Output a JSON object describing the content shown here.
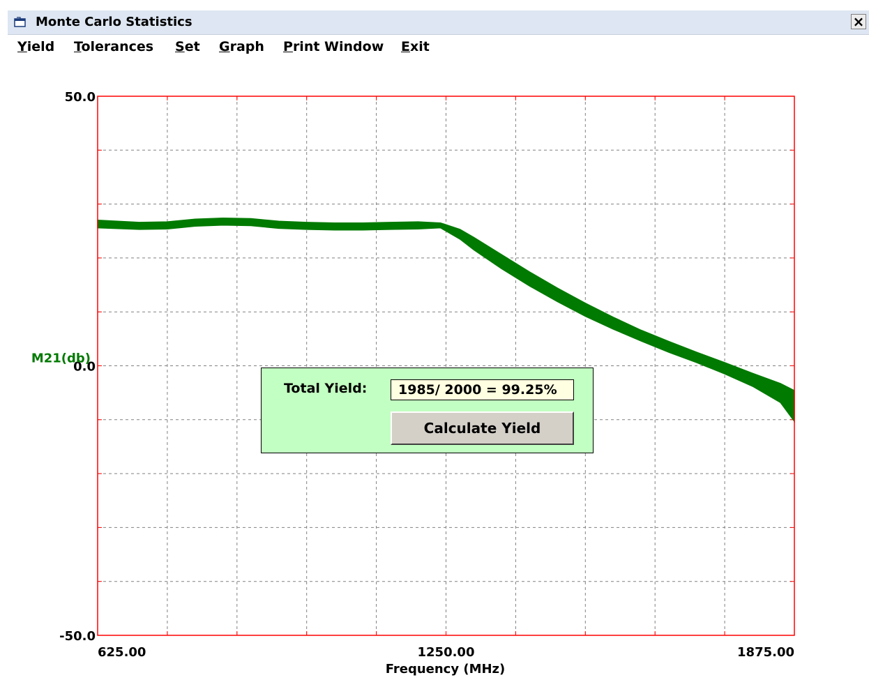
{
  "window": {
    "title": "Monte Carlo Statistics",
    "close_label": "×"
  },
  "menu": [
    {
      "mnemonic": "Y",
      "rest": "ield"
    },
    {
      "mnemonic": "T",
      "rest": "olerances"
    },
    {
      "mnemonic": "S",
      "rest": "et"
    },
    {
      "mnemonic": "G",
      "rest": "raph"
    },
    {
      "mnemonic": "P",
      "rest": "rint Window"
    },
    {
      "mnemonic": "E",
      "rest": "xit"
    }
  ],
  "yield_panel": {
    "label": "Total Yield:",
    "value": "1985/ 2000 = 99.25%",
    "button_label": "Calculate Yield"
  },
  "colors": {
    "plot_border": "#ff0000",
    "grid": "#808080",
    "trace": "#007a00",
    "ylabel": "#007a00",
    "panel_bg": "#c2ffc2"
  },
  "chart_data": {
    "type": "area",
    "title": "",
    "xlabel": "Frequency (MHz)",
    "ylabel": "M21(db)",
    "xlim": [
      625,
      1875
    ],
    "ylim": [
      -50,
      50
    ],
    "x_tick_labels": [
      "625.00",
      "1250.00",
      "1875.00"
    ],
    "y_tick_labels": [
      "50.0",
      "0.0",
      "-50.0"
    ],
    "x_tick_values": [
      625,
      1250,
      1875
    ],
    "y_tick_values": [
      50,
      0,
      -50
    ],
    "x_grid_step": 125,
    "y_grid_step": 10,
    "grid": true,
    "legend": "none",
    "series": [
      {
        "x": [
          625,
          700,
          750,
          800,
          850,
          900,
          950,
          1000,
          1050,
          1100,
          1150,
          1200,
          1240,
          1275,
          1300,
          1350,
          1400,
          1450,
          1500,
          1550,
          1600,
          1650,
          1700,
          1750,
          1800,
          1850,
          1875
        ],
        "upper": [
          27.0,
          26.6,
          26.7,
          27.2,
          27.4,
          27.3,
          26.8,
          26.6,
          26.5,
          26.5,
          26.6,
          26.7,
          26.5,
          25.3,
          23.8,
          20.6,
          17.4,
          14.4,
          11.6,
          9.0,
          6.6,
          4.5,
          2.5,
          0.6,
          -1.4,
          -3.3,
          -4.6
        ],
        "lower": [
          25.6,
          25.3,
          25.4,
          25.9,
          26.1,
          26.0,
          25.5,
          25.3,
          25.2,
          25.2,
          25.3,
          25.4,
          25.6,
          23.5,
          21.5,
          18.0,
          14.8,
          11.9,
          9.2,
          6.8,
          4.6,
          2.5,
          0.6,
          -1.5,
          -3.8,
          -6.8,
          -10.3
        ]
      }
    ]
  }
}
